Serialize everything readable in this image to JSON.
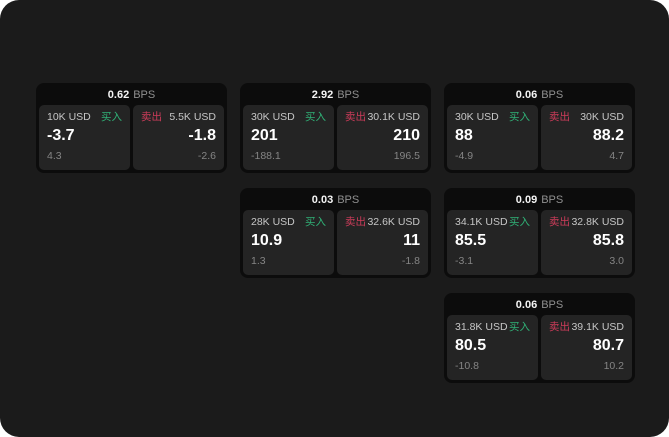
{
  "labels": {
    "buy": "买入",
    "sell": "卖出",
    "bps_unit": "BPS"
  },
  "colors": {
    "frame_bg": "#1b1b1b",
    "card_bg": "#0c0c0c",
    "panel_bg": "#242424",
    "buy_green": "#30b277",
    "sell_red": "#cd3c5a"
  },
  "cards": [
    {
      "bps": "0.62",
      "buy": {
        "amount": "10K USD",
        "price": "-3.7",
        "delta": "4.3"
      },
      "sell": {
        "amount": "5.5K USD",
        "price": "-1.8",
        "delta": "-2.6"
      }
    },
    {
      "bps": "2.92",
      "buy": {
        "amount": "30K USD",
        "price": "201",
        "delta": "-188.1"
      },
      "sell": {
        "amount": "30.1K USD",
        "price": "210",
        "delta": "196.5"
      }
    },
    {
      "bps": "0.06",
      "buy": {
        "amount": "30K USD",
        "price": "88",
        "delta": "-4.9"
      },
      "sell": {
        "amount": "30K USD",
        "price": "88.2",
        "delta": "4.7"
      }
    },
    {
      "bps": "0.03",
      "buy": {
        "amount": "28K USD",
        "price": "10.9",
        "delta": "1.3"
      },
      "sell": {
        "amount": "32.6K USD",
        "price": "11",
        "delta": "-1.8"
      }
    },
    {
      "bps": "0.09",
      "buy": {
        "amount": "34.1K USD",
        "price": "85.5",
        "delta": "-3.1"
      },
      "sell": {
        "amount": "32.8K USD",
        "price": "85.8",
        "delta": "3.0"
      }
    },
    {
      "bps": "0.06",
      "buy": {
        "amount": "31.8K USD",
        "price": "80.5",
        "delta": "-10.8"
      },
      "sell": {
        "amount": "39.1K USD",
        "price": "80.7",
        "delta": "10.2"
      }
    }
  ]
}
